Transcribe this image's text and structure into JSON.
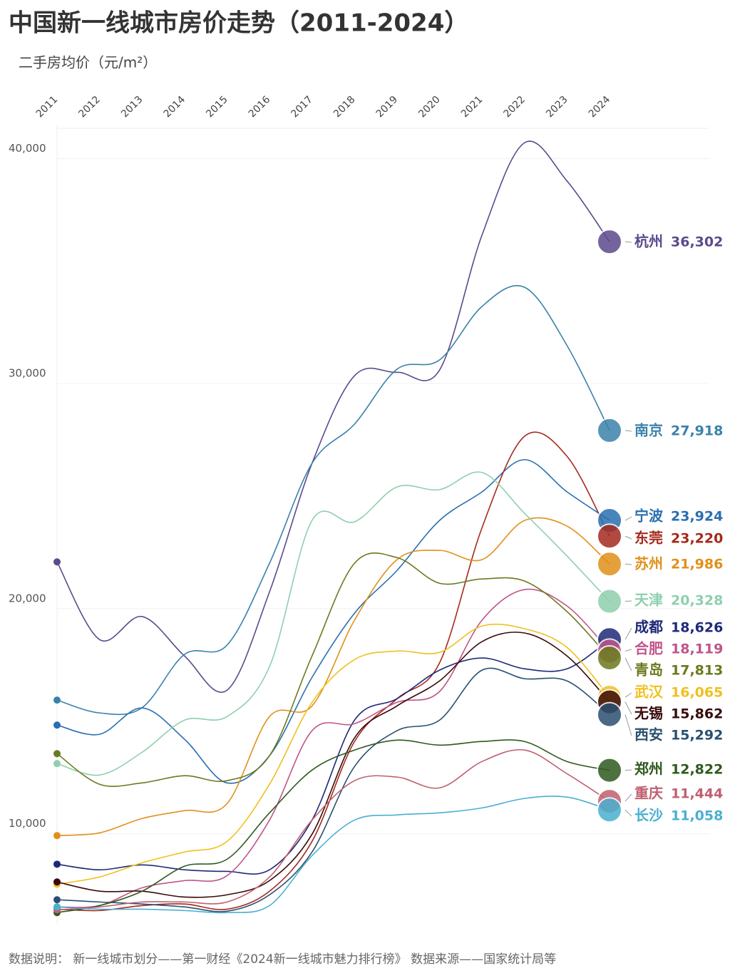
{
  "chart_data": {
    "type": "line",
    "title": "中国新一线城市房价走势（2011-2024）",
    "subtitle": "二手房均价（元/m²）",
    "footnote": "数据说明： 新一线城市划分——第一财经《2024新一线城市魅力排行榜》 数据来源——国家统计局等",
    "categories": [
      "2011",
      "2012",
      "2013",
      "2014",
      "2015",
      "2016",
      "2017",
      "2018",
      "2019",
      "2020",
      "2021",
      "2022",
      "2023",
      "2024"
    ],
    "ylim": [
      6000,
      41500
    ],
    "yticks": [
      {
        "value": 10000,
        "label": "10,000"
      },
      {
        "value": 20000,
        "label": "20,000"
      },
      {
        "value": 30000,
        "label": "30,000"
      },
      {
        "value": 40000,
        "label": "40,000"
      }
    ],
    "grid": true,
    "series": [
      {
        "name": "杭州",
        "color": "#5b4a8c",
        "values": [
          22080,
          18630,
          19650,
          17900,
          16380,
          20750,
          26460,
          30350,
          30500,
          30600,
          36600,
          40700,
          39000,
          36302
        ],
        "value_labels": [
          "36,302"
        ]
      },
      {
        "name": "南京",
        "color": "#3a82aa",
        "values": [
          15940,
          15370,
          15600,
          17970,
          18380,
          22020,
          26460,
          28200,
          30640,
          31050,
          33430,
          34280,
          31690,
          27918
        ],
        "value_labels": [
          "27,918"
        ]
      },
      {
        "name": "宁波",
        "color": "#2a6fb0",
        "values": [
          14830,
          14420,
          15590,
          14200,
          12260,
          13470,
          16950,
          19800,
          21700,
          23920,
          25190,
          26620,
          25190,
          23924
        ],
        "value_labels": [
          "23,924"
        ]
      },
      {
        "name": "东莞",
        "color": "#a52a1e",
        "values": [
          6650,
          6590,
          6810,
          6880,
          6650,
          7450,
          9660,
          14100,
          16000,
          17590,
          23600,
          27660,
          26770,
          23220
        ],
        "value_labels": [
          "23,220"
        ]
      },
      {
        "name": "苏州",
        "color": "#e0901a",
        "values": [
          9920,
          10040,
          10680,
          11030,
          11340,
          15210,
          15680,
          19490,
          22180,
          22590,
          22180,
          23920,
          23670,
          21986
        ],
        "value_labels": [
          "21,986"
        ]
      },
      {
        "name": "天津",
        "color": "#8fcfae",
        "values": [
          13120,
          12610,
          13620,
          15050,
          15210,
          17430,
          23920,
          23860,
          25410,
          25290,
          26050,
          24240,
          22340,
          20328
        ],
        "value_labels": [
          "20,328"
        ]
      },
      {
        "name": "成都",
        "color": "#1e2a78",
        "values": [
          8650,
          8400,
          8620,
          8400,
          8330,
          8400,
          10610,
          15050,
          16000,
          17270,
          17810,
          17330,
          17330,
          18626
        ],
        "value_labels": [
          "18,626"
        ]
      },
      {
        "name": "合肥",
        "color": "#c0558a",
        "values": [
          6750,
          6810,
          7600,
          7920,
          8140,
          10610,
          14580,
          14890,
          15840,
          16320,
          19490,
          20850,
          20120,
          18119
        ],
        "value_labels": [
          "18,119"
        ]
      },
      {
        "name": "青岛",
        "color": "#6b7a1e",
        "values": [
          13560,
          12200,
          12260,
          12580,
          12360,
          13470,
          17900,
          22020,
          22270,
          21130,
          21320,
          21230,
          19870,
          17813
        ],
        "value_labels": [
          "17,813"
        ]
      },
      {
        "name": "武汉",
        "color": "#f0c020",
        "values": [
          7760,
          8080,
          8710,
          9190,
          9660,
          12200,
          15840,
          17740,
          18120,
          18060,
          19230,
          19110,
          18280,
          16065
        ],
        "value_labels": [
          "16,065"
        ]
      },
      {
        "name": "无锡",
        "color": "#3a0a0a",
        "values": [
          7860,
          7450,
          7450,
          7190,
          7290,
          7920,
          9980,
          14260,
          15680,
          16790,
          18540,
          18920,
          17900,
          15862
        ],
        "value_labels": [
          "15,862"
        ]
      },
      {
        "name": "西安",
        "color": "#2a5070",
        "values": [
          7070,
          6970,
          6880,
          6750,
          6560,
          7290,
          9190,
          12990,
          14580,
          15050,
          17270,
          16890,
          16790,
          15292
        ],
        "value_labels": [
          "15,292"
        ]
      },
      {
        "name": "郑州",
        "color": "#2f5a1e",
        "values": [
          6500,
          6810,
          7450,
          8560,
          8870,
          10930,
          12830,
          13720,
          14160,
          13940,
          14100,
          14100,
          13210,
          12822
        ],
        "value_labels": [
          "12,822"
        ]
      },
      {
        "name": "重庆",
        "color": "#c06070",
        "values": [
          6620,
          6750,
          6970,
          6970,
          6970,
          8080,
          10610,
          12360,
          12520,
          12040,
          13210,
          13720,
          12670,
          11444
        ],
        "value_labels": [
          "11,444"
        ]
      },
      {
        "name": "长沙",
        "color": "#4ab0d0",
        "values": [
          6750,
          6650,
          6650,
          6590,
          6500,
          6810,
          9030,
          10610,
          10840,
          10930,
          11150,
          11570,
          11630,
          11058
        ],
        "value_labels": [
          "11,058"
        ]
      }
    ]
  }
}
